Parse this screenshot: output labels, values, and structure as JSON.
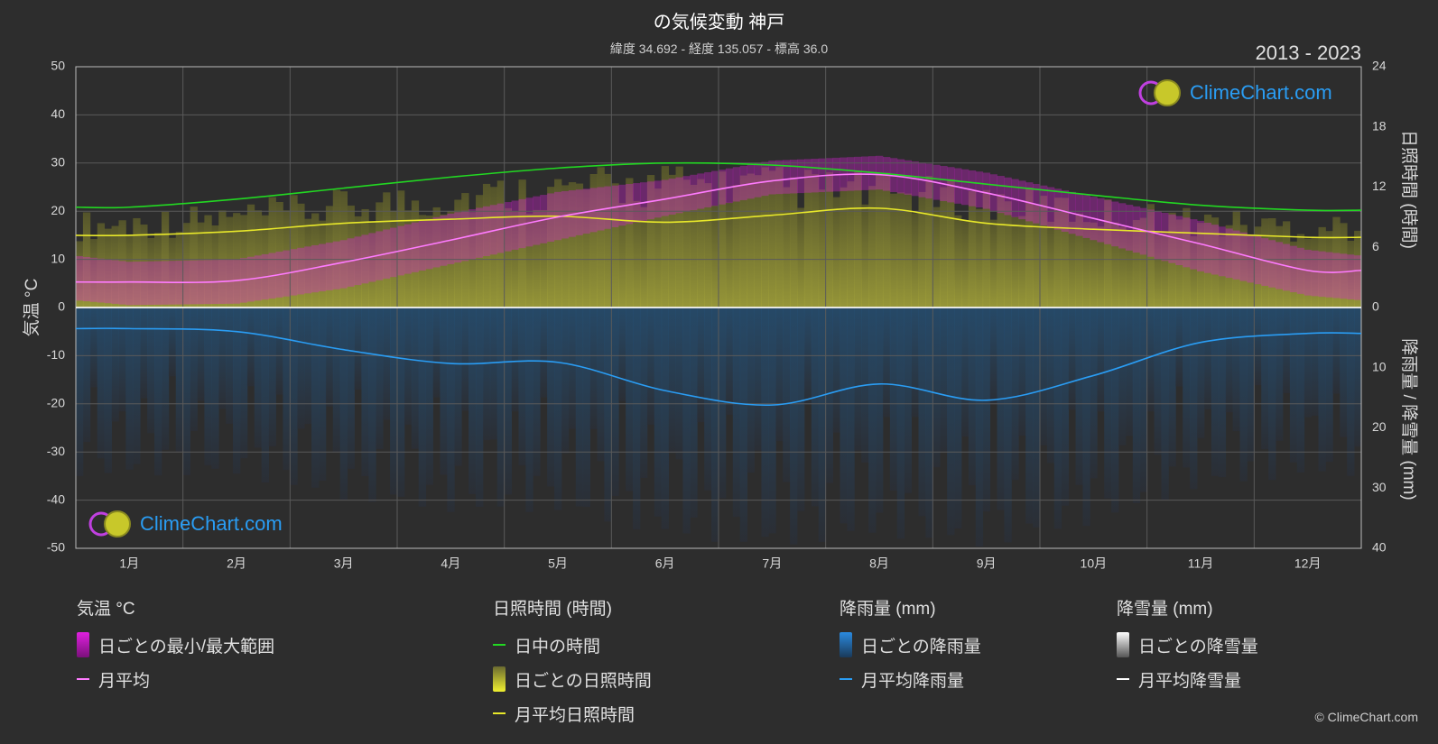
{
  "header": {
    "title": "の気候変動 神戸",
    "subtitle": "緯度 34.692 - 経度 135.057 - 標高 36.0",
    "period": "2013 - 2023"
  },
  "brand": {
    "name": "ClimeChart.com",
    "copyright": "© ClimeChart.com"
  },
  "chart_data": {
    "type": "line",
    "categories": [
      "1月",
      "2月",
      "3月",
      "4月",
      "5月",
      "6月",
      "7月",
      "8月",
      "9月",
      "10月",
      "11月",
      "12月"
    ],
    "y_left": {
      "label": "気温 °C",
      "range": [
        -50,
        50
      ],
      "ticks": [
        50,
        40,
        30,
        20,
        10,
        0,
        -10,
        -20,
        -30,
        -40,
        -50
      ]
    },
    "y_right_top": {
      "label": "日照時間 (時間)",
      "range": [
        0,
        24
      ],
      "ticks": [
        24,
        18,
        12,
        6,
        0
      ]
    },
    "y_right_bottom": {
      "label": "降雨量 / 降雪量 (mm)",
      "range": [
        0,
        40
      ],
      "ticks": [
        0,
        10,
        20,
        30,
        40
      ]
    },
    "grid": true,
    "series": [
      {
        "name": "日中の時間",
        "axis": "sunshine",
        "color": "#22d822",
        "values": [
          10.0,
          10.8,
          11.9,
          13.0,
          13.9,
          14.4,
          14.2,
          13.4,
          12.3,
          11.2,
          10.2,
          9.7
        ]
      },
      {
        "name": "月平均日照時間",
        "axis": "sunshine",
        "color": "#e8e82a",
        "values": [
          7.2,
          7.6,
          8.4,
          8.8,
          9.1,
          8.5,
          9.2,
          9.9,
          8.4,
          7.8,
          7.4,
          7.0
        ]
      },
      {
        "name": "月平均",
        "axis": "temp",
        "color": "#ff7bff",
        "values": [
          5.3,
          5.6,
          9.4,
          14.0,
          18.8,
          22.5,
          26.3,
          27.6,
          23.8,
          18.5,
          13.2,
          7.7
        ]
      },
      {
        "name": "月平均降雨量",
        "axis": "rain",
        "color": "#2a9df4",
        "values": [
          3.5,
          4.0,
          7.0,
          9.3,
          9.1,
          13.8,
          16.2,
          12.7,
          15.4,
          11.3,
          5.8,
          4.3
        ]
      },
      {
        "name": "月平均降雪量",
        "axis": "rain",
        "color": "#ffffff",
        "values": [
          0,
          0,
          0,
          0,
          0,
          0,
          0,
          0,
          0,
          0,
          0,
          0
        ]
      }
    ],
    "bands": [
      {
        "name": "日ごとの最小/最大範囲",
        "axis": "temp",
        "color": "#e020e0",
        "min": [
          0.5,
          0.8,
          4.0,
          9.0,
          14.0,
          19.0,
          23.5,
          24.5,
          20.5,
          14.0,
          7.5,
          2.5
        ],
        "max": [
          9.5,
          10.0,
          14.0,
          19.5,
          24.0,
          26.5,
          30.5,
          31.5,
          28.0,
          23.0,
          18.0,
          12.0
        ]
      },
      {
        "name": "日ごとの日照時間",
        "axis": "sunshine",
        "color": "#9c9c2e",
        "values": [
          9.0,
          9.6,
          10.8,
          11.8,
          12.6,
          13.2,
          13.0,
          12.4,
          11.4,
          10.2,
          9.2,
          8.6
        ]
      },
      {
        "name": "日ごとの降雨量",
        "axis": "rain",
        "color": "#1f5f8f",
        "values": [
          28,
          28,
          32,
          34,
          34,
          38,
          40,
          38,
          40,
          36,
          30,
          28
        ]
      }
    ]
  },
  "legend": {
    "temp": {
      "heading": "気温 °C",
      "items": [
        {
          "label": "日ごとの最小/最大範囲",
          "kind": "block",
          "color": "#e020e0"
        },
        {
          "label": "月平均",
          "kind": "line",
          "color": "#ff7bff"
        }
      ]
    },
    "sun": {
      "heading": "日照時間 (時間)",
      "items": [
        {
          "label": "日中の時間",
          "kind": "line",
          "color": "#22d822"
        },
        {
          "label": "日ごとの日照時間",
          "kind": "block",
          "color": "#d8d830"
        },
        {
          "label": "月平均日照時間",
          "kind": "line",
          "color": "#e8e82a"
        }
      ]
    },
    "rain": {
      "heading": "降雨量 (mm)",
      "items": [
        {
          "label": "日ごとの降雨量",
          "kind": "block",
          "color": "#2a8ae0"
        },
        {
          "label": "月平均降雨量",
          "kind": "line",
          "color": "#2a9df4"
        }
      ]
    },
    "snow": {
      "heading": "降雪量 (mm)",
      "items": [
        {
          "label": "日ごとの降雪量",
          "kind": "block",
          "color": "#e0e0e0"
        },
        {
          "label": "月平均降雪量",
          "kind": "line",
          "color": "#ffffff"
        }
      ]
    }
  }
}
